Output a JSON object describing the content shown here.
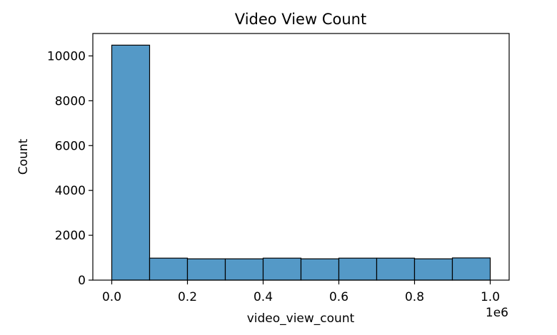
{
  "chart_data": {
    "type": "bar",
    "title": "Video View Count",
    "xlabel": "video_view_count",
    "ylabel": "Count",
    "x_offset_label": "1e6",
    "bins": [
      {
        "start": 0.0,
        "end": 0.1,
        "count": 10480
      },
      {
        "start": 0.1,
        "end": 0.2,
        "count": 980
      },
      {
        "start": 0.2,
        "end": 0.3,
        "count": 950
      },
      {
        "start": 0.3,
        "end": 0.4,
        "count": 950
      },
      {
        "start": 0.4,
        "end": 0.5,
        "count": 980
      },
      {
        "start": 0.5,
        "end": 0.6,
        "count": 950
      },
      {
        "start": 0.6,
        "end": 0.7,
        "count": 980
      },
      {
        "start": 0.7,
        "end": 0.8,
        "count": 980
      },
      {
        "start": 0.8,
        "end": 0.9,
        "count": 950
      },
      {
        "start": 0.9,
        "end": 1.0,
        "count": 990
      }
    ],
    "xlim": [
      -0.05,
      1.05
    ],
    "ylim": [
      0,
      11000
    ],
    "xticks": [
      0.0,
      0.2,
      0.4,
      0.6,
      0.8,
      1.0
    ],
    "xtick_labels": [
      "0.0",
      "0.2",
      "0.4",
      "0.6",
      "0.8",
      "1.0"
    ],
    "yticks": [
      0,
      2000,
      4000,
      6000,
      8000,
      10000
    ],
    "ytick_labels": [
      "0",
      "2000",
      "4000",
      "6000",
      "8000",
      "10000"
    ],
    "grid": false,
    "bar_color": "#5499c7",
    "edge_color": "#000000"
  }
}
